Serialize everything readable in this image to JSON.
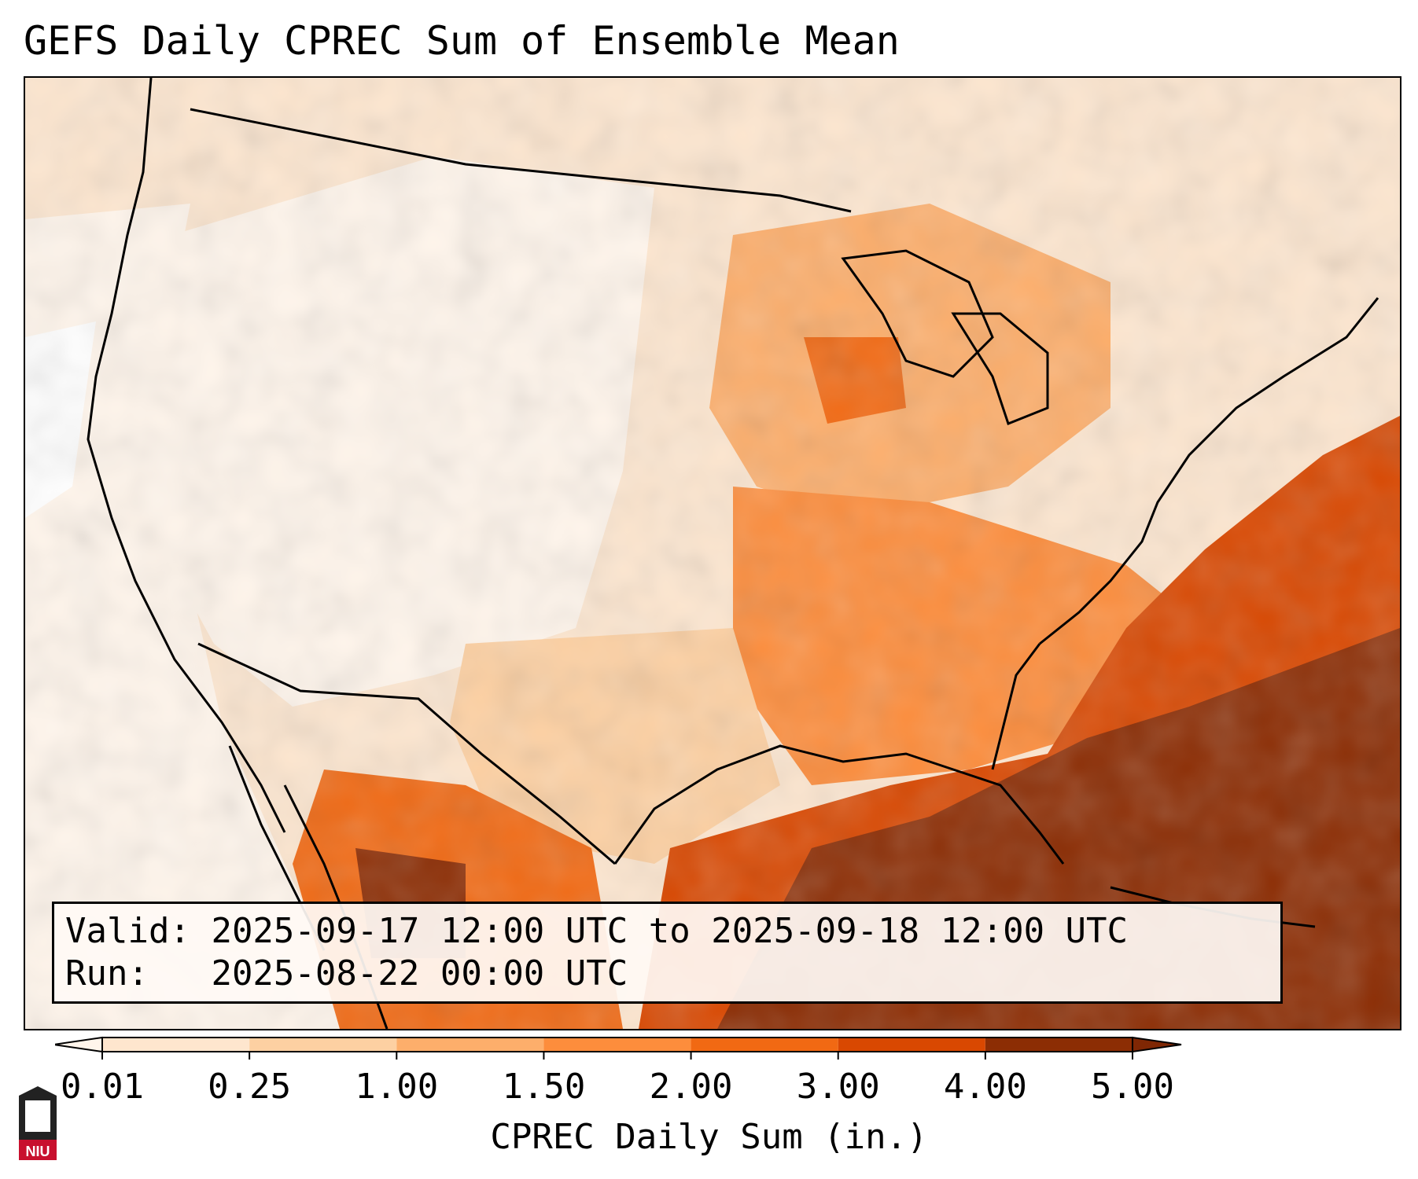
{
  "title": "GEFS Daily CPREC Sum of Ensemble Mean",
  "info": {
    "valid_label": "Valid:",
    "valid_value": "2025-09-17 12:00 UTC to 2025-09-18 12:00 UTC",
    "run_label": "Run:",
    "run_value": "2025-08-22 00:00 UTC"
  },
  "colorbar": {
    "label": "CPREC Daily Sum (in.)",
    "ticks": [
      "0.01",
      "0.25",
      "1.00",
      "1.50",
      "2.00",
      "3.00",
      "4.00",
      "5.00"
    ],
    "colors": [
      "#fff5eb",
      "#fee6ce",
      "#fdd0a2",
      "#fdae6b",
      "#fd8d3c",
      "#f16913",
      "#d94801",
      "#8c2d04"
    ],
    "under_color": "#ffffff",
    "over_color": "#7f2704",
    "extend": "both"
  },
  "logo": {
    "text": "NIU",
    "colors": {
      "body": "#222222",
      "band": "#c8102e"
    }
  },
  "map": {
    "border_color": "#000000",
    "ocean_fill": "#fde6cf",
    "precip_regions": [
      {
        "region": "Pacific offshore",
        "level": "0.01"
      },
      {
        "region": "Great Basin / Rockies",
        "level": "0.01"
      },
      {
        "region": "Northern Plains",
        "level": "0.25"
      },
      {
        "region": "Upper Midwest / Great Lakes",
        "level": "1.50"
      },
      {
        "region": "Ohio / Tennessee Valleys",
        "level": "1.50"
      },
      {
        "region": "Southeast",
        "level": "2.00"
      },
      {
        "region": "Western Mexico",
        "level": "3.00"
      },
      {
        "region": "Gulf of Mexico",
        "level": "5.00"
      },
      {
        "region": "Western Atlantic",
        "level": "5.00"
      }
    ]
  }
}
